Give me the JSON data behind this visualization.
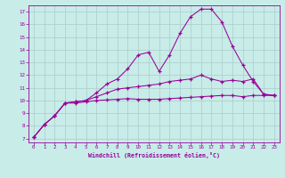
{
  "xlabel": "Windchill (Refroidissement éolien,°C)",
  "background_color": "#c8ece8",
  "line_color": "#990099",
  "grid_color": "#aacccc",
  "xlim": [
    -0.5,
    23.5
  ],
  "ylim": [
    6.7,
    17.5
  ],
  "xticks": [
    0,
    1,
    2,
    3,
    4,
    5,
    6,
    7,
    8,
    9,
    10,
    11,
    12,
    13,
    14,
    15,
    16,
    17,
    18,
    19,
    20,
    21,
    22,
    23
  ],
  "yticks": [
    7,
    8,
    9,
    10,
    11,
    12,
    13,
    14,
    15,
    16,
    17
  ],
  "curve1_x": [
    0,
    1,
    2,
    3,
    4,
    5,
    6,
    7,
    8,
    9,
    10,
    11,
    12,
    13,
    14,
    15,
    16,
    17,
    18,
    19,
    20,
    21,
    22,
    23
  ],
  "curve1_y": [
    7.1,
    8.1,
    8.8,
    9.8,
    9.8,
    9.9,
    10.0,
    10.05,
    10.1,
    10.15,
    10.1,
    10.1,
    10.1,
    10.15,
    10.2,
    10.25,
    10.3,
    10.35,
    10.4,
    10.4,
    10.3,
    10.4,
    10.4,
    10.4
  ],
  "curve2_x": [
    0,
    1,
    2,
    3,
    4,
    5,
    6,
    7,
    8,
    9,
    10,
    11,
    12,
    13,
    14,
    15,
    16,
    17,
    18,
    19,
    20,
    21,
    22,
    23
  ],
  "curve2_y": [
    7.1,
    8.1,
    8.8,
    9.8,
    9.9,
    10.0,
    10.3,
    10.6,
    10.9,
    11.0,
    11.1,
    11.2,
    11.3,
    11.5,
    11.6,
    11.7,
    12.0,
    11.7,
    11.5,
    11.6,
    11.5,
    11.7,
    10.5,
    10.4
  ],
  "curve3_x": [
    0,
    1,
    2,
    3,
    4,
    5,
    6,
    7,
    8,
    9,
    10,
    11,
    12,
    13,
    14,
    15,
    16,
    17,
    18,
    19,
    20,
    21,
    22,
    23
  ],
  "curve3_y": [
    7.1,
    8.1,
    8.8,
    9.8,
    9.9,
    10.0,
    10.6,
    11.3,
    11.7,
    12.5,
    13.6,
    13.8,
    12.3,
    13.6,
    15.3,
    16.6,
    17.2,
    17.2,
    16.2,
    14.3,
    12.8,
    11.5,
    10.5,
    10.4
  ]
}
